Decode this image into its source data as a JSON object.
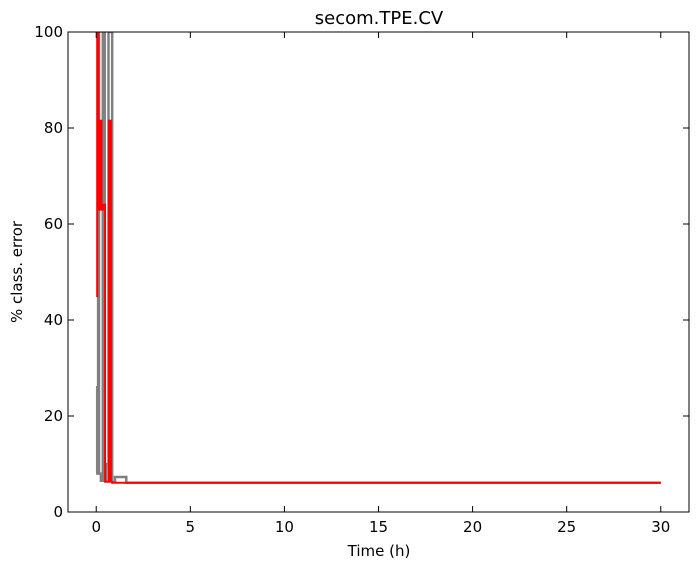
{
  "chart_data": {
    "type": "line",
    "title": "secom.TPE.CV",
    "xlabel": "Time (h)",
    "ylabel": "% class. error",
    "xlim": [
      -1.5,
      31.5
    ],
    "ylim": [
      0,
      100
    ],
    "xticks": [
      0,
      5,
      10,
      15,
      20,
      25,
      30
    ],
    "yticks": [
      0,
      20,
      40,
      60,
      80,
      100
    ],
    "grid": false,
    "series": [
      {
        "color": "#808080",
        "width": 2.5,
        "x": [
          0.0,
          0.05,
          0.05,
          0.1,
          0.1,
          0.15,
          0.15,
          0.25,
          0.25,
          0.35,
          0.35,
          0.45,
          0.45,
          0.55,
          0.55,
          0.65,
          0.65,
          0.72,
          0.72,
          0.85,
          0.85,
          1.0,
          1.0,
          1.6,
          1.6,
          30.0
        ],
        "y": [
          8,
          8,
          26,
          26,
          100,
          100,
          8,
          8,
          6.5,
          6.5,
          100,
          100,
          6.5,
          6.5,
          10,
          10,
          100,
          100,
          100,
          100,
          6.2,
          6.2,
          7.3,
          7.3,
          6.1,
          6.1
        ]
      },
      {
        "color": "#ff0000",
        "width": 2,
        "x": [
          0.0,
          0.05,
          0.05,
          0.12,
          0.12,
          0.2,
          0.2,
          0.28,
          0.28,
          0.38,
          0.38,
          0.47,
          0.47,
          0.55,
          0.55,
          0.68,
          0.68,
          0.78,
          0.78,
          0.85,
          0.85,
          30.0
        ],
        "y": [
          45,
          45,
          100,
          100,
          63,
          63,
          81.5,
          81.5,
          63,
          63,
          64,
          64,
          6.3,
          6.3,
          6.3,
          6.3,
          81.5,
          81.5,
          6.3,
          6.3,
          6.1,
          6.1
        ]
      }
    ]
  }
}
